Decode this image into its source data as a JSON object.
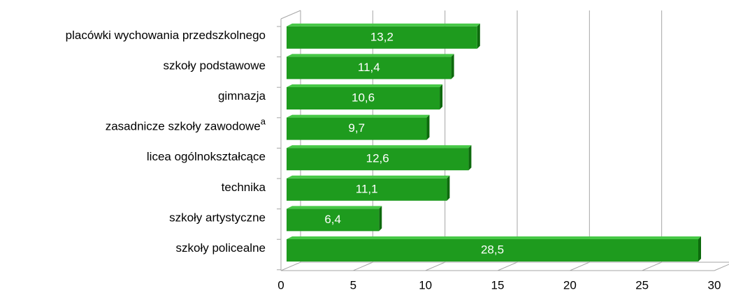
{
  "chart_data": {
    "type": "barh",
    "categories": [
      "placówki wychowania przedszkolnego",
      "szkoły podstawowe",
      "gimnazja",
      "zasadnicze szkoły zawodowe",
      "licea ogólnokształcące",
      "technika",
      "szkoły artystyczne",
      "szkoły policealne"
    ],
    "category_superscripts": [
      null,
      null,
      null,
      "a",
      null,
      null,
      null,
      null
    ],
    "values": [
      13.2,
      11.4,
      10.6,
      9.7,
      12.6,
      11.1,
      6.4,
      28.5
    ],
    "value_labels": [
      "13,2",
      "11,4",
      "10,6",
      "9,7",
      "12,6",
      "11,1",
      "6,4",
      "28,5"
    ],
    "color": "#1e9b1e",
    "xlim": [
      0,
      30
    ],
    "xticks": [
      0,
      5,
      10,
      15,
      20,
      25,
      30
    ],
    "grid": true
  }
}
